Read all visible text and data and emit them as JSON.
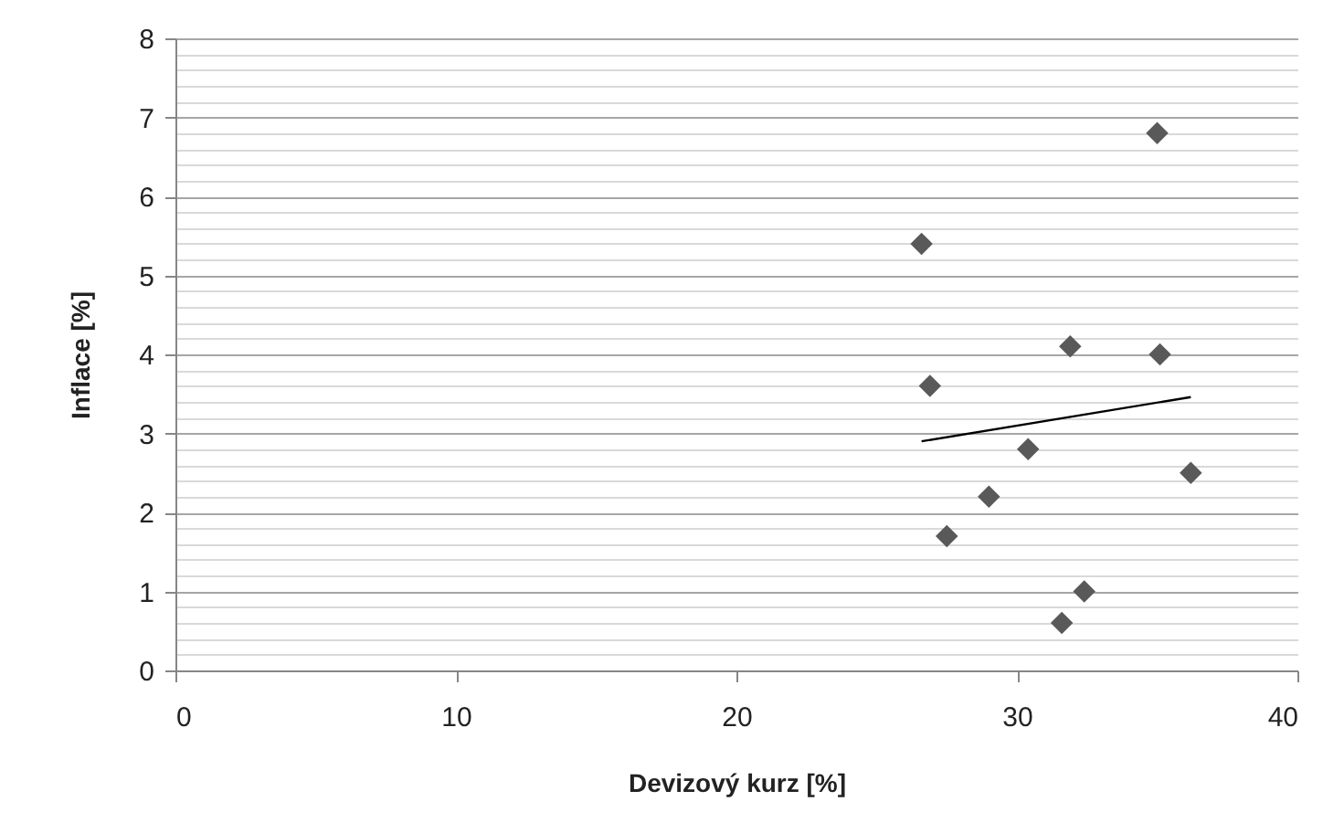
{
  "chart_data": {
    "type": "scatter",
    "xlabel": "Devizový kurz  [%]",
    "ylabel": "Inflace  [%]",
    "xlim": [
      0,
      40
    ],
    "xticks": [
      0,
      10,
      20,
      30,
      40
    ],
    "ylim": [
      0,
      8
    ],
    "yticks": [
      0,
      {
        "value": 0.2,
        "label": null
      },
      {
        "value": 0.4,
        "label": null
      },
      {
        "value": 0.6,
        "label": null
      },
      {
        "value": 0.8,
        "label": null
      },
      1,
      {
        "value": 1.2,
        "label": null
      },
      {
        "value": 1.4,
        "label": null
      },
      {
        "value": 1.6,
        "label": null
      },
      {
        "value": 1.8,
        "label": null
      },
      2,
      {
        "value": 2.2,
        "label": null
      },
      {
        "value": 2.4,
        "label": null
      },
      {
        "value": 2.6,
        "label": null
      },
      {
        "value": 2.8,
        "label": null
      },
      3,
      {
        "value": 3.2,
        "label": null
      },
      {
        "value": 3.4,
        "label": null
      },
      {
        "value": 3.6,
        "label": null
      },
      {
        "value": 3.8,
        "label": null
      },
      4,
      {
        "value": 4.2,
        "label": null
      },
      {
        "value": 4.4,
        "label": null
      },
      {
        "value": 4.6,
        "label": null
      },
      {
        "value": 4.8,
        "label": null
      },
      5,
      {
        "value": 5.2,
        "label": null
      },
      {
        "value": 5.4,
        "label": null
      },
      {
        "value": 5.6,
        "label": null
      },
      {
        "value": 5.8,
        "label": null
      },
      6,
      {
        "value": 6.2,
        "label": null
      },
      {
        "value": 6.4,
        "label": null
      },
      {
        "value": 6.6,
        "label": null
      },
      {
        "value": 6.8,
        "label": null
      },
      7,
      {
        "value": 7.2,
        "label": null
      },
      {
        "value": 7.4,
        "label": null
      },
      {
        "value": 7.6,
        "label": null
      },
      {
        "value": 7.8,
        "label": null
      },
      8
    ],
    "grid": "y",
    "series": [
      {
        "marker": "diamond",
        "color": "#595959",
        "x": [
          35.0,
          26.6,
          31.9,
          35.1,
          26.9,
          30.4,
          36.2,
          29.0,
          27.5,
          32.4,
          31.6
        ],
        "values": [
          6.8,
          5.4,
          4.1,
          4.0,
          3.6,
          2.8,
          2.5,
          2.2,
          1.7,
          1.0,
          0.6
        ]
      },
      {
        "type": "line",
        "color": "#000000",
        "x": [
          26.6,
          36.2
        ],
        "values": [
          2.9,
          3.46
        ],
        "line_style": "solid",
        "marker": "none"
      }
    ]
  }
}
